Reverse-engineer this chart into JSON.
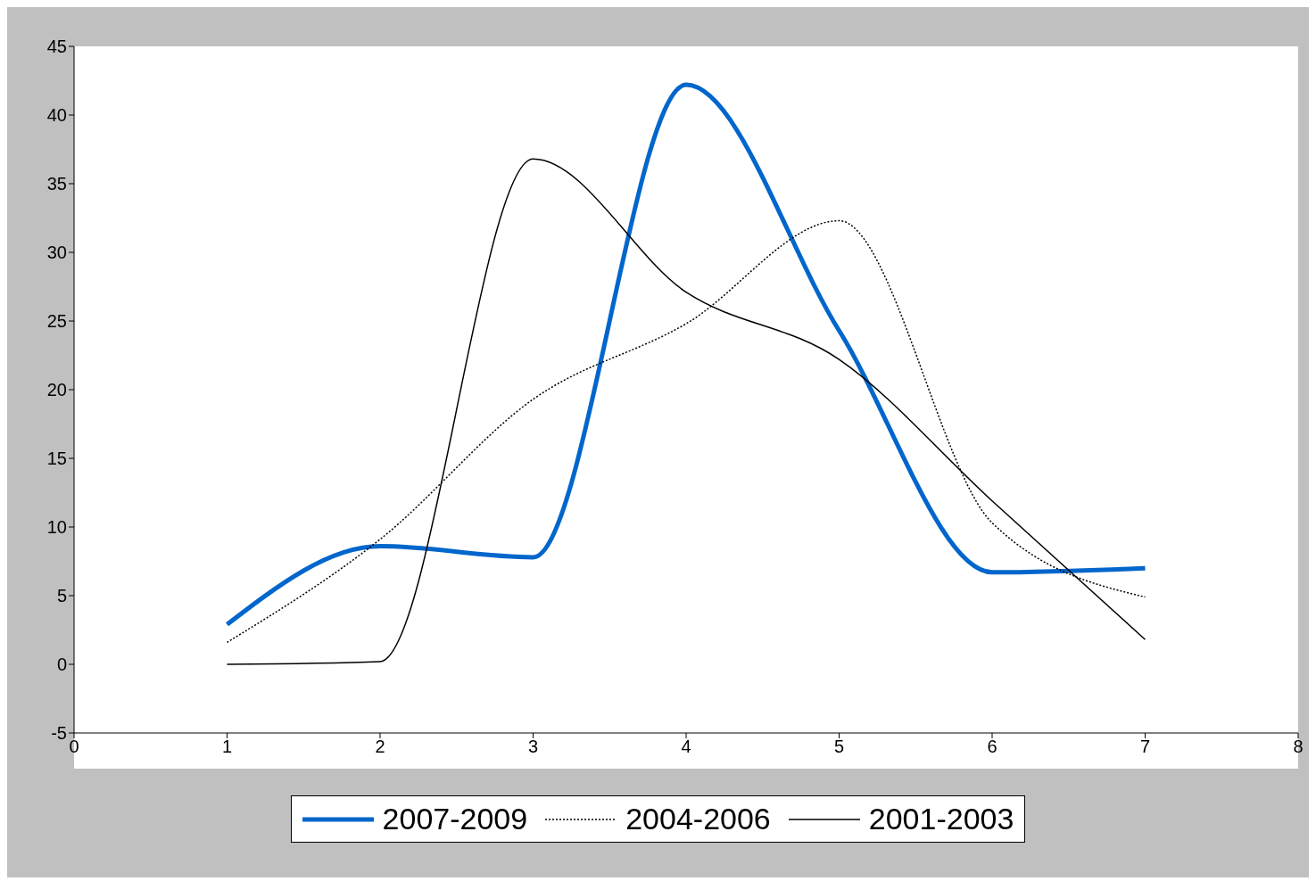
{
  "chart_data": {
    "type": "line",
    "x": [
      1,
      2,
      3,
      4,
      5,
      6,
      7
    ],
    "xlim": [
      0,
      8
    ],
    "xticks": [
      0,
      1,
      2,
      3,
      4,
      5,
      6,
      7,
      8
    ],
    "ylim": [
      -5,
      45
    ],
    "yticks": [
      -5,
      0,
      5,
      10,
      15,
      20,
      25,
      30,
      35,
      40,
      45
    ],
    "legend": "bottom",
    "marker": "none",
    "series": [
      {
        "name": "2007-2009",
        "color": "#0066cc",
        "line_style": "solid",
        "values": [
          2.9,
          8.6,
          7.8,
          42.2,
          24.3,
          6.7,
          7.0
        ]
      },
      {
        "name": "2004-2006",
        "color": "#000000",
        "line_style": "dotted",
        "values": [
          1.6,
          9.1,
          19.3,
          24.8,
          32.3,
          10.3,
          4.9
        ]
      },
      {
        "name": "2001-2003",
        "color": "#000000",
        "line_style": "solid",
        "values": [
          0,
          0.2,
          36.8,
          27.1,
          22.2,
          11.9,
          1.8
        ]
      }
    ]
  }
}
